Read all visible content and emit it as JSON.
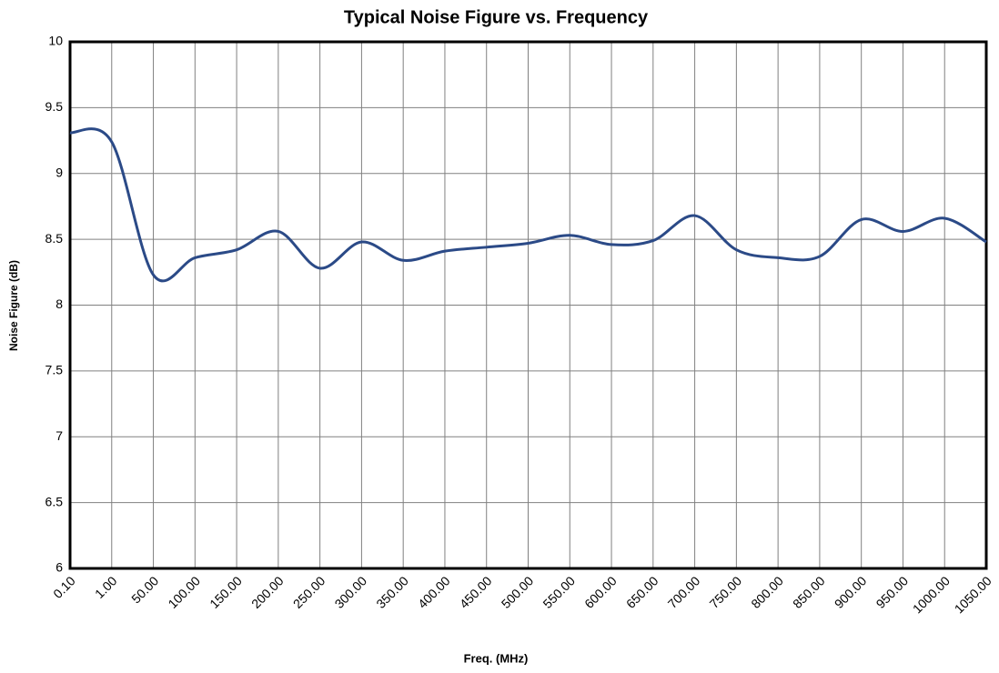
{
  "chart_data": {
    "type": "line",
    "title": "Typical Noise Figure vs. Frequency",
    "x_label": "Freq. (MHz)",
    "y_label": "Noise Figure (dB)",
    "categories": [
      "0.10",
      "1.00",
      "50.00",
      "100.00",
      "150.00",
      "200.00",
      "250.00",
      "300.00",
      "350.00",
      "400.00",
      "450.00",
      "500.00",
      "550.00",
      "600.00",
      "650.00",
      "700.00",
      "750.00",
      "800.00",
      "850.00",
      "900.00",
      "950.00",
      "1000.00",
      "1050.00"
    ],
    "series": [
      {
        "name": "Noise Figure",
        "color": "#2b4a87",
        "values": [
          9.31,
          9.24,
          8.23,
          8.36,
          8.42,
          8.56,
          8.28,
          8.48,
          8.34,
          8.41,
          8.44,
          8.47,
          8.53,
          8.46,
          8.49,
          8.68,
          8.42,
          8.36,
          8.37,
          8.65,
          8.56,
          8.66,
          8.48
        ]
      }
    ],
    "ylim": [
      6,
      10
    ],
    "yticks": [
      6,
      6.5,
      7,
      7.5,
      8,
      8.5,
      9,
      9.5,
      10
    ],
    "grid": true,
    "smooth": true
  }
}
